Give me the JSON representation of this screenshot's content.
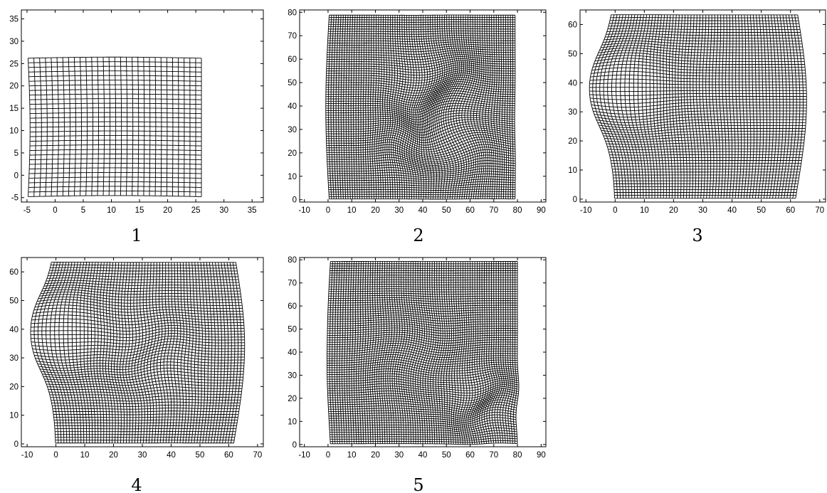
{
  "panels": [
    {
      "caption": "1",
      "xlim": [
        -6,
        37
      ],
      "ylim": [
        -6,
        37
      ],
      "xticks": [
        -5,
        0,
        5,
        10,
        15,
        20,
        25,
        30,
        35
      ],
      "yticks": [
        -5,
        0,
        5,
        10,
        15,
        20,
        25,
        30,
        35
      ],
      "grid": {
        "xmin": -4.8,
        "xmax": 26,
        "ymin": -4.8,
        "ymax": 26.2,
        "nx": 31,
        "ny": 31
      }
    },
    {
      "caption": "2",
      "xlim": [
        -12,
        92
      ],
      "ylim": [
        -1,
        81
      ],
      "xticks": [
        -10,
        0,
        10,
        20,
        30,
        40,
        50,
        60,
        70,
        80,
        90
      ],
      "yticks": [
        0,
        10,
        20,
        30,
        40,
        50,
        60,
        70,
        80
      ],
      "grid": {
        "xmin": 0.5,
        "xmax": 79,
        "ymin": 0.3,
        "ymax": 78.8,
        "nx": 80,
        "ny": 80
      }
    },
    {
      "caption": "3",
      "xlim": [
        -12,
        72
      ],
      "ylim": [
        -1,
        65
      ],
      "xticks": [
        -10,
        0,
        10,
        20,
        30,
        40,
        50,
        60,
        70
      ],
      "yticks": [
        0,
        10,
        20,
        30,
        40,
        50,
        60
      ],
      "grid": {
        "xmin": 0,
        "xmax": 62.5,
        "ymin": 0.3,
        "ymax": 63.3,
        "nx": 64,
        "ny": 64
      }
    },
    {
      "caption": "4",
      "xlim": [
        -12,
        72
      ],
      "ylim": [
        -1,
        65
      ],
      "xticks": [
        -10,
        0,
        10,
        20,
        30,
        40,
        50,
        60,
        70
      ],
      "yticks": [
        0,
        10,
        20,
        30,
        40,
        50,
        60
      ],
      "grid": {
        "xmin": 0,
        "xmax": 62.5,
        "ymin": 0.3,
        "ymax": 63.3,
        "nx": 64,
        "ny": 64
      }
    },
    {
      "caption": "5",
      "xlim": [
        -12,
        92
      ],
      "ylim": [
        -1,
        81
      ],
      "xticks": [
        -10,
        0,
        10,
        20,
        30,
        40,
        50,
        60,
        70,
        80,
        90
      ],
      "yticks": [
        0,
        10,
        20,
        30,
        40,
        50,
        60,
        70,
        80
      ],
      "grid": {
        "xmin": 1,
        "xmax": 80,
        "ymin": 0.3,
        "ymax": 79.3,
        "nx": 80,
        "ny": 80
      }
    }
  ]
}
